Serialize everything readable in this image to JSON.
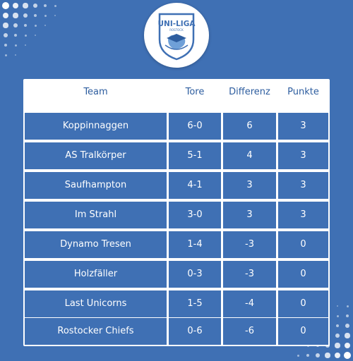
{
  "logo": {
    "title": "UNI-LIGA",
    "subtitle": "ROSTOCK",
    "accent": "#3f70b4"
  },
  "table": {
    "headers": [
      "Team",
      "Tore",
      "Differenz",
      "Punkte"
    ],
    "rows": [
      {
        "team": "Koppinnaggen",
        "tore": "6-0",
        "diff": "6",
        "punkte": "3"
      },
      {
        "team": "AS Tralkörper",
        "tore": "5-1",
        "diff": "4",
        "punkte": "3"
      },
      {
        "team": "Saufhampton",
        "tore": "4-1",
        "diff": "3",
        "punkte": "3"
      },
      {
        "team": "Im Strahl",
        "tore": "3-0",
        "diff": "3",
        "punkte": "3"
      },
      {
        "team": "Dynamo Tresen",
        "tore": "1-4",
        "diff": "-3",
        "punkte": "0"
      },
      {
        "team": "Holzfäller",
        "tore": "0-3",
        "diff": "-3",
        "punkte": "0"
      },
      {
        "team": "Last Unicorns",
        "tore": "1-5",
        "diff": "-4",
        "punkte": "0"
      },
      {
        "team": "Rostocker Chiefs",
        "tore": "0-6",
        "diff": "-6",
        "punkte": "0"
      }
    ]
  },
  "colors": {
    "background": "#3f70b4",
    "header_text": "#2d5d9f",
    "cell": "#3f70b4"
  }
}
